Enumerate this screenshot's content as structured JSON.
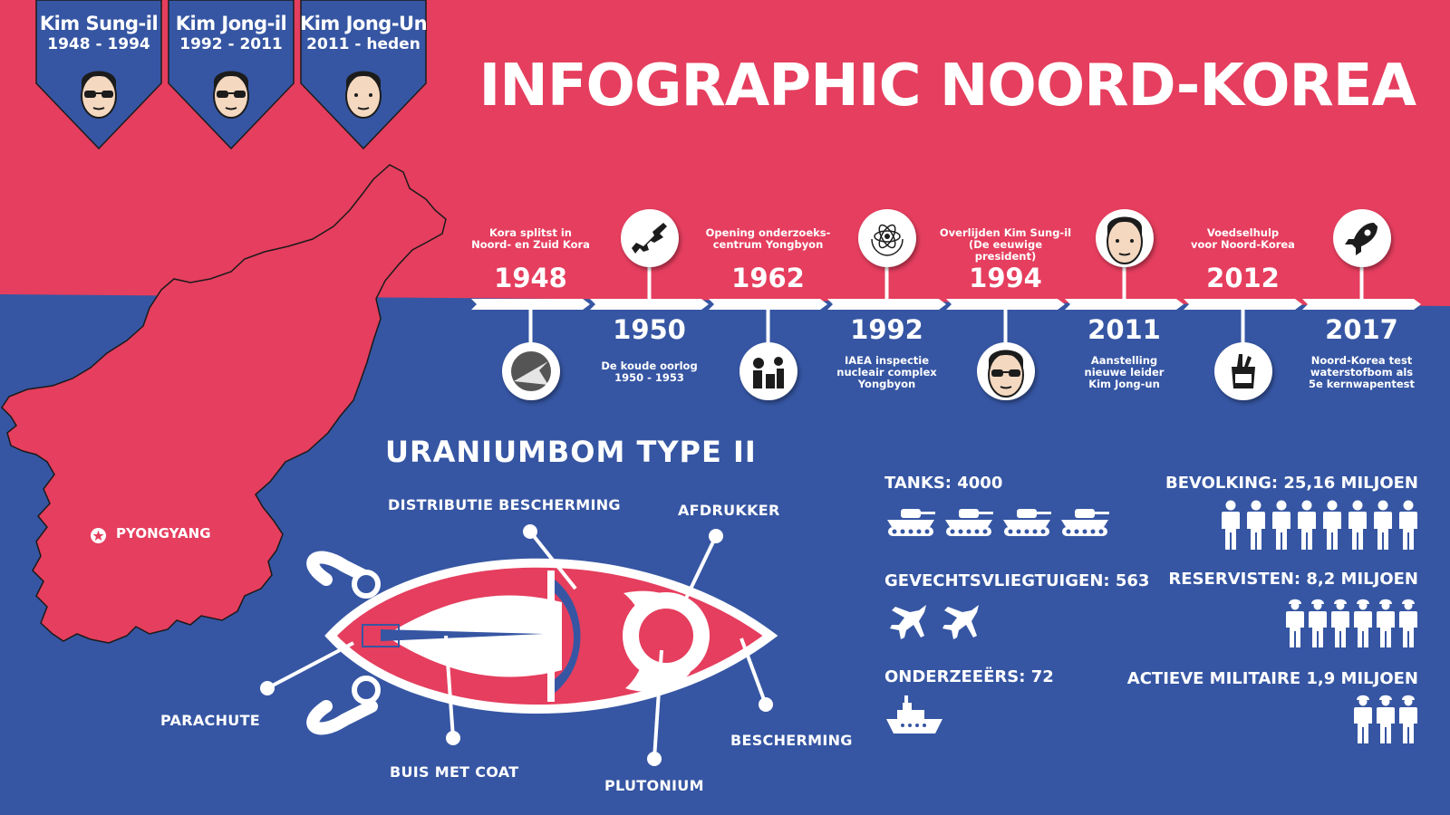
{
  "title": "INFOGRAPHIC NOORD-KOREA",
  "colors": {
    "red": "#e53e5e",
    "blue": "#3656a3",
    "white": "#ffffff",
    "dark": "#1c1c1c"
  },
  "leaders": [
    {
      "name": "Kim Sung-il",
      "years": "1948 - 1994",
      "icon": "leader-face-sunglasses-icon"
    },
    {
      "name": "Kim Jong-il",
      "years": "1992 - 2011",
      "icon": "leader-face-sunglasses-icon"
    },
    {
      "name": "Kim Jong-Un",
      "years": "2011 - heden",
      "icon": "leader-face-icon"
    }
  ],
  "timeline": [
    {
      "year": "1948",
      "caption": "Kora splitst in\nNoord- en Zuid Kora",
      "icon": "split-circle-icon"
    },
    {
      "year": "1950",
      "caption": "De koude oorlog\n1950 - 1953",
      "icon": "rifle-icon"
    },
    {
      "year": "1962",
      "caption": "Opening onderzoeks-\ncentrum Yongbyon",
      "icon": "factory-icon"
    },
    {
      "year": "1992",
      "caption": "IAEA inspectie\nnucleair complex\nYongbyon",
      "icon": "atom-icon"
    },
    {
      "year": "1994",
      "caption": "Overlijden Kim Sung-il\n(De eeuwige president)",
      "icon": "leader-face-sunglasses-icon"
    },
    {
      "year": "2011",
      "caption": "Aanstelling\nnieuwe leider\nKim Jong-un",
      "icon": "leader-face-icon"
    },
    {
      "year": "2012",
      "caption": "Voedselhulp\nvoor Noord-Korea",
      "icon": "grocery-bag-icon"
    },
    {
      "year": "2017",
      "caption": "Noord-Korea test\nwaterstofbom als\n5e kernwapentest",
      "icon": "rocket-icon"
    }
  ],
  "map": {
    "city": "PYONGYANG",
    "icon": "capital-star-icon"
  },
  "bomb": {
    "title": "URANIUMBOM TYPE II",
    "labels": {
      "distributie": "DISTRIBUTIE BESCHERMING",
      "afdrukker": "AFDRUKKER",
      "parachute": "PARACHUTE",
      "buis": "BUIS MET COAT",
      "plutonium": "PLUTONIUM",
      "bescherming": "BESCHERMING"
    }
  },
  "military": {
    "tanks": {
      "label": "TANKS: 4000",
      "icons": 4,
      "icon": "tank-icon"
    },
    "jets": {
      "label": "GEVECHTSVLIEGTUIGEN: 563",
      "icons": 2,
      "icon": "fighter-jet-icon"
    },
    "subs": {
      "label": "ONDERZEEËRS: 72",
      "icons": 1,
      "icon": "ship-icon"
    }
  },
  "population": {
    "bevolking": {
      "label": "BEVOLKING: 25,16 MILJOEN",
      "icons": 8,
      "icon": "person-icon"
    },
    "reservisten": {
      "label": "RESERVISTEN: 8,2 MILJOEN",
      "icons": 6,
      "icon": "soldier-icon"
    },
    "actief": {
      "label": "ACTIEVE MILITAIRE 1,9 MILJOEN",
      "icons": 3,
      "icon": "soldier-icon"
    }
  }
}
